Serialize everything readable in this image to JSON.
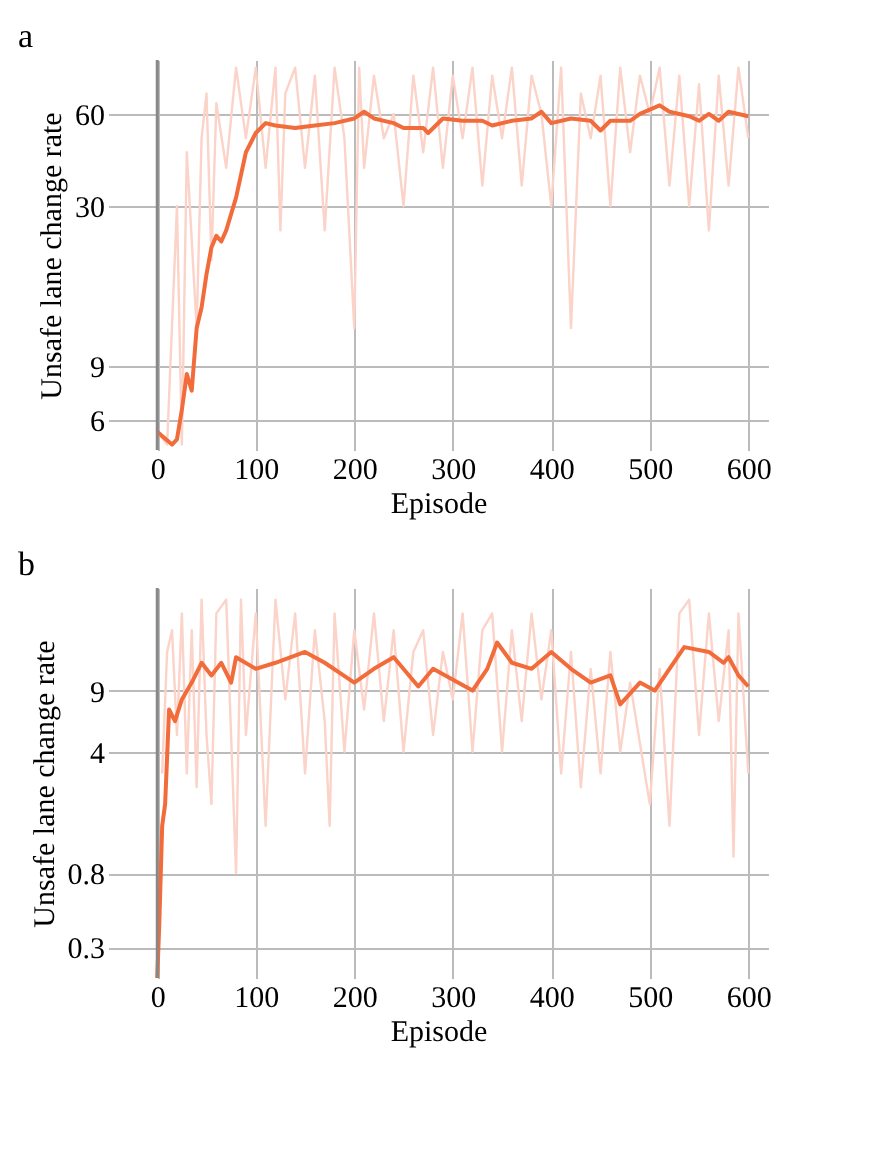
{
  "chart_data": [
    {
      "type": "line",
      "title": "a",
      "xlabel": "Episode",
      "ylabel": "Unsafe lane change rate",
      "xlim": [
        -50,
        620
      ],
      "xticks": [
        0,
        100,
        200,
        300,
        400,
        500,
        600
      ],
      "ylim": [
        4.8,
        90
      ],
      "yticks": [
        6,
        9,
        30,
        60
      ],
      "log": "y",
      "grid": true,
      "series": [
        {
          "color": "#fbd3c8",
          "x": [
            0,
            10,
            20,
            25,
            30,
            40,
            45,
            50,
            55,
            60,
            70,
            80,
            90,
            100,
            110,
            120,
            125,
            130,
            140,
            150,
            160,
            170,
            180,
            190,
            200,
            205,
            210,
            220,
            230,
            240,
            250,
            260,
            270,
            280,
            290,
            300,
            310,
            320,
            330,
            340,
            350,
            360,
            370,
            380,
            390,
            400,
            410,
            420,
            430,
            440,
            450,
            460,
            470,
            480,
            490,
            500,
            510,
            520,
            530,
            540,
            550,
            560,
            570,
            580,
            590,
            600
          ],
          "values": [
            5.5,
            5,
            30,
            5,
            45,
            12,
            50,
            70,
            20,
            65,
            40,
            85,
            50,
            85,
            40,
            85,
            25,
            70,
            85,
            40,
            80,
            25,
            85,
            50,
            12,
            85,
            40,
            80,
            50,
            60,
            30,
            80,
            45,
            85,
            40,
            80,
            50,
            85,
            35,
            80,
            50,
            85,
            35,
            80,
            60,
            30,
            85,
            12,
            70,
            50,
            80,
            30,
            85,
            45,
            80,
            60,
            85,
            35,
            80,
            30,
            75,
            25,
            80,
            35,
            85,
            50
          ]
        },
        {
          "color": "#f26b3a",
          "x": [
            0,
            15,
            20,
            25,
            30,
            35,
            40,
            45,
            50,
            55,
            60,
            65,
            70,
            80,
            90,
            100,
            110,
            120,
            140,
            160,
            180,
            200,
            210,
            220,
            240,
            250,
            270,
            275,
            290,
            310,
            330,
            340,
            360,
            380,
            390,
            400,
            420,
            440,
            450,
            460,
            480,
            490,
            500,
            510,
            520,
            540,
            550,
            560,
            570,
            580,
            590,
            600
          ],
          "values": [
            5.5,
            5,
            5.2,
            6.5,
            8.5,
            7.5,
            12,
            14,
            18,
            22,
            24,
            23,
            25,
            32,
            45,
            52,
            56,
            55,
            54,
            55,
            56,
            58,
            61,
            58,
            56,
            54,
            54,
            52,
            58,
            57,
            57,
            55,
            57,
            58,
            61,
            56,
            58,
            57,
            53,
            57,
            57,
            60,
            62,
            64,
            61,
            59,
            57,
            60,
            57,
            61,
            60,
            59
          ]
        }
      ]
    },
    {
      "type": "line",
      "title": "b",
      "xlabel": "Episode",
      "ylabel": "Unsafe lane change rate",
      "xlim": [
        -50,
        620
      ],
      "xticks": [
        0,
        100,
        200,
        300,
        400,
        500,
        600
      ],
      "ylim": [
        0.2,
        35
      ],
      "yticks": [
        0.3,
        0.8,
        4,
        9
      ],
      "log": "y",
      "grid": true,
      "series": [
        {
          "color": "#fbd3c8",
          "x": [
            5,
            10,
            15,
            20,
            25,
            30,
            35,
            40,
            45,
            50,
            55,
            60,
            70,
            80,
            85,
            90,
            100,
            110,
            120,
            130,
            140,
            150,
            160,
            170,
            175,
            180,
            190,
            200,
            210,
            220,
            230,
            240,
            250,
            260,
            270,
            280,
            290,
            300,
            310,
            320,
            330,
            340,
            350,
            360,
            370,
            380,
            390,
            400,
            410,
            420,
            430,
            440,
            450,
            460,
            470,
            480,
            500,
            510,
            520,
            530,
            540,
            550,
            560,
            570,
            580,
            585,
            590,
            600
          ],
          "values": [
            3,
            15,
            20,
            5,
            25,
            3,
            20,
            2.5,
            30,
            5,
            2,
            25,
            30,
            0.8,
            30,
            5,
            25,
            1.5,
            30,
            8,
            25,
            3,
            20,
            6,
            1.5,
            25,
            4,
            20,
            7,
            25,
            6,
            20,
            4,
            15,
            20,
            5,
            15,
            8,
            25,
            4,
            20,
            25,
            4,
            20,
            6,
            25,
            8,
            20,
            3,
            15,
            2.5,
            12,
            3,
            15,
            4,
            10,
            2,
            12,
            1.5,
            25,
            30,
            5,
            25,
            6,
            20,
            1,
            25,
            3
          ]
        },
        {
          "color": "#f26b3a",
          "x": [
            0,
            2,
            5,
            8,
            12,
            18,
            25,
            35,
            45,
            55,
            65,
            75,
            80,
            100,
            120,
            150,
            170,
            200,
            220,
            240,
            265,
            280,
            320,
            335,
            345,
            360,
            380,
            400,
            420,
            440,
            460,
            470,
            490,
            505,
            520,
            535,
            560,
            575,
            580,
            590,
            600
          ],
          "values": [
            0.2,
            0.4,
            1.5,
            2,
            7,
            6,
            8,
            10,
            13,
            11,
            13,
            10,
            14,
            12,
            13,
            15,
            13,
            10,
            12,
            14,
            9.5,
            12,
            9,
            12,
            17,
            13,
            12,
            15,
            12,
            10,
            11,
            7.5,
            10,
            9,
            12,
            16,
            15,
            13,
            14,
            11,
            9.5
          ]
        }
      ]
    }
  ]
}
